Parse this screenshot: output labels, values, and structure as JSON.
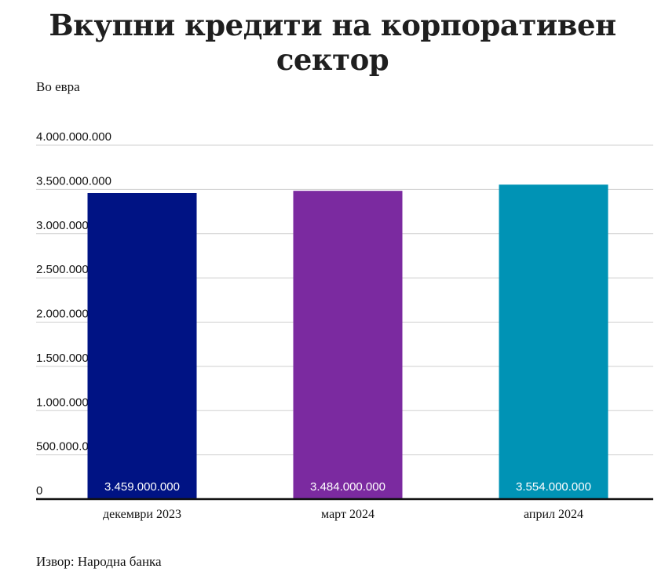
{
  "chart_data": {
    "type": "bar",
    "title": "Вкупни кредити на корпоративен сектор",
    "subtitle": "Во евра",
    "source": "Извор: Народна банка",
    "categories": [
      "декември 2023",
      "март 2024",
      "април 2024"
    ],
    "values": [
      3459000000,
      3484000000,
      3554000000
    ],
    "data_labels": [
      "3.459.000.000",
      "3.484.000.000",
      "3.554.000.000"
    ],
    "colors": [
      "#001384",
      "#7b2aa0",
      "#0093b5"
    ],
    "ylim": [
      0,
      4000000000
    ],
    "yticks": [
      0,
      500000000,
      1000000000,
      1500000000,
      2000000000,
      2500000000,
      3000000000,
      3500000000,
      4000000000
    ],
    "ytick_labels": [
      "0",
      "500.000.000",
      "1.000.000.000",
      "1.500.000.000",
      "2.000.000.000",
      "2.500.000.000",
      "3.000.000.000",
      "3.500.000.000",
      "4.000.000.000"
    ],
    "grid": true,
    "legend": "none"
  }
}
